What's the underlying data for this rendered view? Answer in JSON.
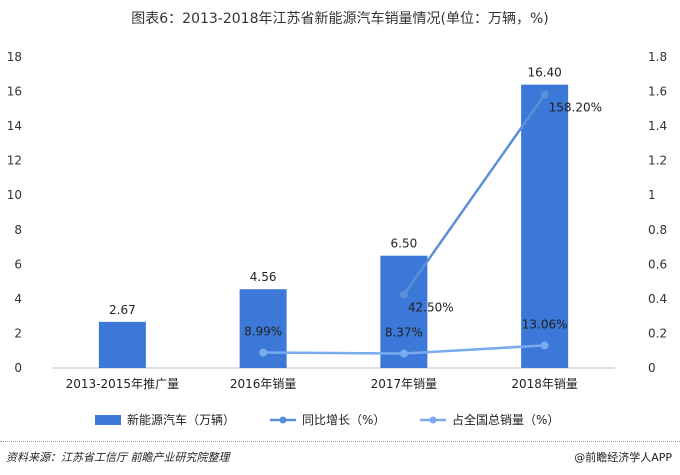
{
  "chart_data": {
    "type": "bar+line",
    "title": "图表6：2013-2018年江苏省新能源汽车销量情况(单位：万辆，%)",
    "categories": [
      "2013-2015年推广量",
      "2016年销量",
      "2017年销量",
      "2018年销量"
    ],
    "bar_series": {
      "name": "新能源汽车（万辆）",
      "values": [
        2.67,
        4.56,
        6.5,
        16.4
      ],
      "labels": [
        "2.67",
        "4.56",
        "6.50",
        "16.40"
      ],
      "color": "#3c78d8"
    },
    "line_series": [
      {
        "name": "同比增长（%）",
        "values": [
          null,
          null,
          0.425,
          1.582
        ],
        "labels": [
          "",
          "",
          "42.50%",
          "158.20%"
        ],
        "color": "#5b8fd9",
        "axis": "right"
      },
      {
        "name": "占全国总销量（%）",
        "values": [
          null,
          0.0899,
          0.0837,
          0.1306
        ],
        "labels": [
          "",
          "8.99%",
          "8.37%",
          "13.06%"
        ],
        "color": "#7aaaf0",
        "axis": "right"
      }
    ],
    "y_left": {
      "min": 0,
      "max": 18,
      "ticks": [
        "0",
        "2",
        "4",
        "6",
        "8",
        "10",
        "12",
        "14",
        "16",
        "18"
      ]
    },
    "y_right": {
      "min": 0,
      "max": 1.8,
      "ticks": [
        "0",
        "0.2",
        "0.4",
        "0.6",
        "0.8",
        "1",
        "1.2",
        "1.4",
        "1.6",
        "1.8"
      ]
    },
    "grid": false,
    "legend_position": "bottom"
  },
  "footer": {
    "source": "资料来源：江苏省工信厅 前瞻产业研究院整理",
    "brand": "@前瞻经济学人APP"
  }
}
